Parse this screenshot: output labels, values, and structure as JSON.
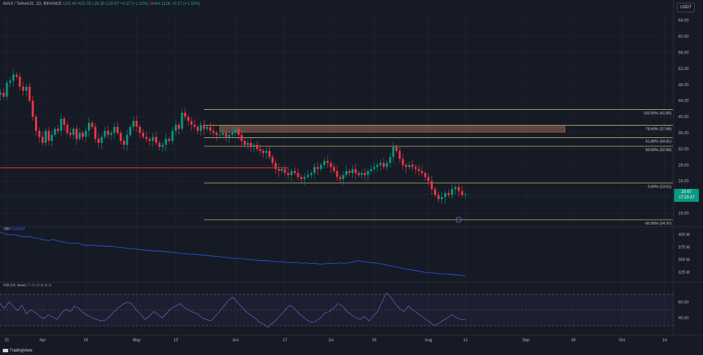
{
  "header": {
    "symbol": "AVAX / TetherUS, 1D, BINANCE",
    "o_label": "O",
    "o": "20.40",
    "h_label": "H",
    "h": "20.78",
    "l_label": "L",
    "l": "20.30",
    "c_label": "C",
    "c": "20.67",
    "change": "+0.27 (+1.32%)",
    "vol_label": "Vol",
    "vol": "44.112K",
    "change2": "+0.27 (+1.32%)"
  },
  "unit_badge": "USDT",
  "current_price": "20.67",
  "countdown": "17:23:37",
  "logo_text": "TradingView",
  "colors": {
    "background": "#161a25",
    "up": "#089981",
    "down": "#f23645",
    "fib": "#c9c36a",
    "obv": "#2962ff",
    "rsi": "#7e57c2",
    "support_line": "#f23645",
    "zone": "#9a6a5a"
  },
  "chart_data": [
    {
      "type": "candlestick",
      "y_axis_ticks": [
        "64.00",
        "60.00",
        "56.00",
        "52.00",
        "48.00",
        "44.00",
        "40.00",
        "36.00",
        "32.00",
        "28.00",
        "24.00",
        "20.00",
        "16.00"
      ],
      "ylim": [
        13,
        66
      ],
      "x_axis_ticks": [
        "21",
        "Apr",
        "15",
        "May",
        "13",
        "Jun",
        "17",
        "Jul",
        "15",
        "Aug",
        "12",
        "Sep",
        "16",
        "Oct",
        "14"
      ],
      "x_tick_dates": [
        "2024-03-21",
        "2024-04-01",
        "2024-04-15",
        "2024-05-01",
        "2024-05-13",
        "2024-06-01",
        "2024-06-17",
        "2024-07-01",
        "2024-07-15",
        "2024-08-01",
        "2024-08-12",
        "2024-09-01",
        "2024-09-16",
        "2024-10-01",
        "2024-10-14"
      ],
      "closes": [
        58.5,
        56.0,
        59.5,
        55.0,
        57.5,
        53.0,
        54.5,
        56.5,
        58.0,
        55.0,
        57.0,
        54.0,
        55.5,
        53.0,
        52.0,
        50.5,
        48.5,
        47.0,
        45.5,
        46.0,
        45.0,
        48.5,
        49.0,
        50.5,
        50.0,
        47.5,
        46.5,
        47.5,
        44.0,
        40.0,
        36.5,
        35.0,
        33.5,
        36.5,
        34.0,
        35.5,
        37.0,
        36.5,
        39.5,
        38.0,
        36.0,
        35.5,
        37.0,
        34.5,
        36.0,
        35.0,
        36.5,
        38.5,
        37.5,
        34.5,
        33.5,
        35.0,
        36.5,
        35.5,
        36.0,
        37.5,
        36.0,
        34.0,
        33.0,
        35.5,
        37.5,
        39.0,
        37.5,
        36.0,
        35.0,
        34.5,
        34.0,
        35.0,
        33.5,
        32.5,
        33.0,
        34.5,
        34.0,
        36.5,
        38.0,
        37.0,
        41.0,
        40.0,
        39.0,
        38.0,
        37.5,
        36.5,
        38.0,
        37.0,
        37.5,
        36.5,
        36.0,
        35.5,
        35.5,
        36.0,
        35.0,
        35.5,
        36.0,
        37.0,
        35.5,
        34.0,
        33.0,
        33.5,
        32.5,
        33.0,
        32.0,
        31.5,
        31.0,
        31.5,
        30.0,
        28.5,
        27.0,
        26.5,
        27.0,
        26.0,
        25.5,
        26.5,
        26.0,
        25.0,
        24.5,
        25.0,
        25.5,
        26.0,
        27.5,
        27.0,
        28.0,
        29.0,
        28.5,
        27.5,
        26.5,
        25.0,
        24.5,
        25.5,
        26.5,
        26.0,
        27.0,
        26.0,
        25.5,
        26.0,
        25.5,
        26.5,
        27.0,
        27.5,
        28.0,
        28.5,
        27.5,
        28.5,
        30.0,
        32.5,
        31.5,
        29.5,
        28.0,
        27.5,
        28.0,
        27.5,
        27.0,
        26.5,
        26.0,
        25.0,
        24.0,
        22.0,
        20.5,
        19.5,
        20.0,
        21.0,
        20.5,
        22.0,
        22.5,
        21.5,
        20.5,
        20.67
      ],
      "fib_levels": [
        {
          "label": "100.00% (41.80)",
          "value": 41.8
        },
        {
          "label": "78.60% (37.89)",
          "value": 37.89
        },
        {
          "label": "61.80% (34.81)",
          "value": 34.81
        },
        {
          "label": "50.00% (32.66)",
          "value": 32.66
        },
        {
          "label": "0.00% (23.51)",
          "value": 23.51
        },
        {
          "label": "-50.00% (14.37)",
          "value": 14.37
        }
      ],
      "support_level": 27.3,
      "resistance_zone": [
        36.2,
        37.6
      ]
    },
    {
      "type": "line",
      "indicator": "OBV",
      "label": "OBV",
      "value_text": "318.86M",
      "y_axis_ticks": [
        "400 M",
        "375 M",
        "350 M",
        "325 M"
      ],
      "ylim": [
        315,
        410
      ],
      "values": [
        405,
        401,
        399,
        400,
        397,
        395,
        396,
        393,
        392,
        389,
        388,
        390,
        387,
        385,
        383,
        382,
        383,
        380,
        378,
        379,
        377,
        378,
        376,
        377,
        375,
        374,
        373,
        372,
        371,
        370,
        369,
        368,
        367,
        367,
        366,
        365,
        364,
        363,
        362,
        361,
        361,
        360,
        359,
        358,
        357,
        356,
        355,
        354,
        353,
        352,
        352,
        351,
        350,
        349,
        348,
        348,
        347,
        346,
        346,
        345,
        344,
        345,
        343,
        344,
        342,
        343,
        341,
        342,
        343,
        342,
        344,
        343,
        344,
        346,
        348,
        346,
        345,
        344,
        343,
        341,
        339,
        337,
        335,
        333,
        331,
        330,
        328,
        326,
        325,
        324,
        323,
        322,
        322,
        321,
        320,
        319,
        318.86
      ]
    },
    {
      "type": "line",
      "indicator": "RSI",
      "label": "RSI (14, close)",
      "value_text": "37.66",
      "na_text": "∅ ∅ ∅ ∅",
      "y_axis_ticks": [
        "60.00",
        "40.00"
      ],
      "ylim": [
        25,
        80
      ],
      "bands": [
        70,
        30
      ],
      "values": [
        58,
        52,
        60,
        55,
        49,
        56,
        45,
        50,
        47,
        42,
        39,
        44,
        41,
        38,
        46,
        51,
        48,
        55,
        52,
        46,
        43,
        40,
        38,
        36,
        37,
        42,
        48,
        53,
        57,
        60,
        58,
        50,
        45,
        38,
        42,
        48,
        44,
        40,
        46,
        52,
        55,
        58,
        53,
        50,
        47,
        45,
        40,
        38,
        36,
        42,
        48,
        55,
        62,
        66,
        60,
        54,
        48,
        44,
        40,
        35,
        32,
        28,
        33,
        38,
        44,
        50,
        56,
        52,
        46,
        41,
        37,
        34,
        36,
        40,
        46,
        48,
        52,
        58,
        55,
        48,
        44,
        40,
        38,
        42,
        36,
        42,
        48,
        60,
        72,
        66,
        58,
        52,
        48,
        55,
        50,
        46,
        42,
        38,
        34,
        30,
        33,
        37,
        40,
        44,
        40,
        38,
        37.66
      ]
    }
  ]
}
